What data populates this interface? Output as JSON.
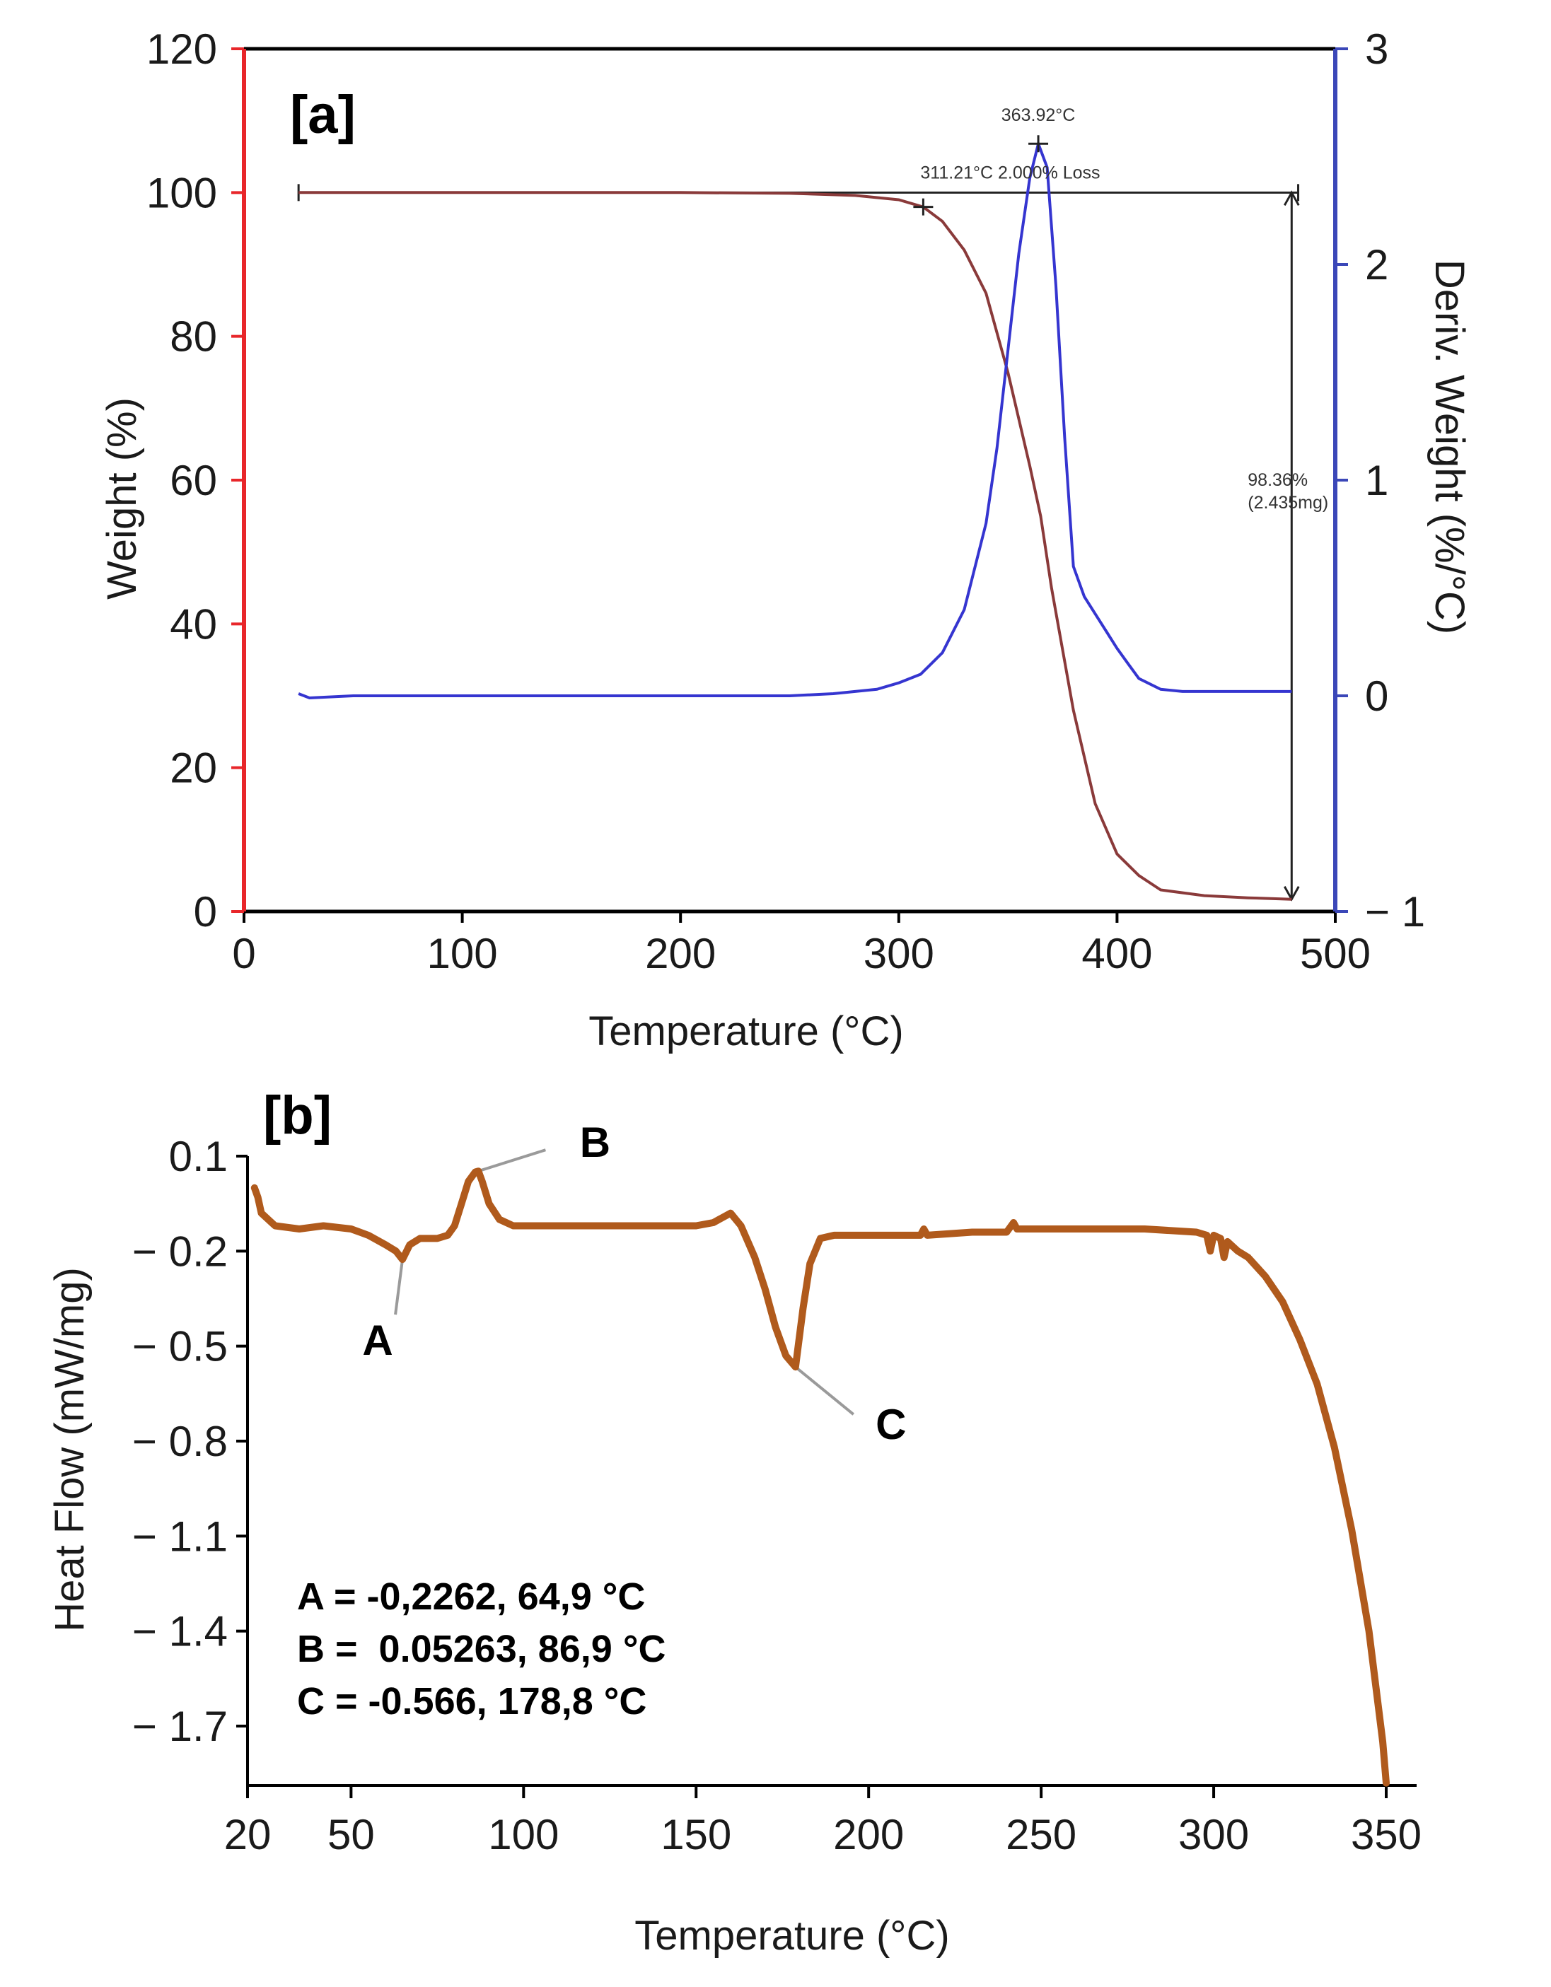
{
  "chart_data": [
    {
      "panel": "[a]",
      "type": "line",
      "xlabel": "Temperature (°C)",
      "ylabel": "Weight (%)",
      "y2label": "Deriv. Weight (%/°C)",
      "xlim": [
        0,
        500
      ],
      "ylim": [
        0,
        120
      ],
      "y2lim": [
        -1,
        3
      ],
      "xticks": [
        "0",
        "100",
        "200",
        "300",
        "400",
        "500"
      ],
      "yticks": [
        "0",
        "20",
        "40",
        "60",
        "80",
        "100",
        "120"
      ],
      "y2ticks": [
        "− 1",
        "0",
        "1",
        "2",
        "3"
      ],
      "colors": {
        "left_axis": "#e8262a",
        "right_axis": "#3b47b8",
        "weight": "#8a3a3a",
        "deriv": "#3535d0",
        "annot": "#222222"
      },
      "series": [
        {
          "name": "Weight",
          "axis": "left",
          "x": [
            25,
            100,
            200,
            250,
            280,
            300,
            311.21,
            320,
            330,
            340,
            350,
            360,
            365,
            370,
            380,
            390,
            400,
            410,
            420,
            440,
            460,
            480
          ],
          "y": [
            100,
            100,
            100,
            99.9,
            99.6,
            99.0,
            98.0,
            96.0,
            92.0,
            86.0,
            75.0,
            62.0,
            55.0,
            45.0,
            28.0,
            15.0,
            8.0,
            5.0,
            3.0,
            2.2,
            1.9,
            1.7
          ]
        },
        {
          "name": "Deriv. Weight",
          "axis": "right",
          "x": [
            25,
            30,
            50,
            100,
            200,
            250,
            270,
            290,
            300,
            310,
            320,
            330,
            340,
            345,
            350,
            355,
            360,
            363.92,
            368,
            372,
            376,
            380,
            385,
            390,
            395,
            400,
            405,
            410,
            420,
            430,
            450,
            480
          ],
          "y": [
            0.01,
            -0.01,
            0.0,
            0.0,
            0.0,
            0.0,
            0.01,
            0.03,
            0.06,
            0.1,
            0.2,
            0.4,
            0.8,
            1.15,
            1.6,
            2.05,
            2.4,
            2.56,
            2.45,
            1.9,
            1.2,
            0.6,
            0.46,
            0.38,
            0.3,
            0.22,
            0.15,
            0.08,
            0.03,
            0.02,
            0.02,
            0.02
          ]
        }
      ],
      "annotations": {
        "peak_label": "363.92°C",
        "peak_x": 363.92,
        "onset_label": "311.21°C 2.000% Loss",
        "onset_x": 311.21,
        "loss_label_1": "98.36%",
        "loss_label_2": "(2.435mg)",
        "hline_y": 100,
        "hline_x": [
          25,
          483
        ],
        "arrow_x": 480,
        "arrow_y": [
          100,
          1.7
        ]
      }
    },
    {
      "panel": "[b]",
      "type": "line",
      "xlabel": "Temperature (°C)",
      "ylabel": "Heat Flow (mW/mg)",
      "xlim": [
        20,
        350
      ],
      "ylim": [
        -1.9,
        0.1
      ],
      "xticks": [
        "20",
        "50",
        "100",
        "150",
        "200",
        "250",
        "300",
        "350"
      ],
      "yticks": [
        "0.1",
        "− 0.2",
        "− 0.5",
        "− 0.8",
        "− 1.1",
        "− 1.4",
        "− 1.7"
      ],
      "colors": {
        "line": "#b05a1c",
        "leader": "#9a9a9a"
      },
      "series": [
        {
          "name": "Heat Flow",
          "x": [
            22,
            23,
            24,
            28,
            35,
            42,
            50,
            55,
            60,
            63,
            64.9,
            67,
            70,
            75,
            78,
            80,
            82,
            84,
            86,
            86.9,
            88,
            90,
            93,
            97,
            100,
            110,
            130,
            150,
            155,
            160,
            163,
            167,
            170,
            173,
            176,
            178.8,
            181,
            183,
            186,
            190,
            200,
            215,
            216,
            217,
            230,
            240,
            242,
            243,
            260,
            280,
            295,
            298,
            299,
            300,
            302,
            303,
            304,
            307,
            310,
            315,
            320,
            325,
            330,
            335,
            340,
            345,
            349,
            350
          ],
          "y": [
            0.0,
            -0.03,
            -0.08,
            -0.12,
            -0.13,
            -0.12,
            -0.13,
            -0.15,
            -0.18,
            -0.2,
            -0.2262,
            -0.18,
            -0.16,
            -0.16,
            -0.15,
            -0.12,
            -0.05,
            0.02,
            0.05,
            0.05263,
            0.02,
            -0.05,
            -0.1,
            -0.12,
            -0.12,
            -0.12,
            -0.12,
            -0.12,
            -0.11,
            -0.08,
            -0.12,
            -0.22,
            -0.32,
            -0.44,
            -0.53,
            -0.566,
            -0.38,
            -0.24,
            -0.16,
            -0.15,
            -0.15,
            -0.15,
            -0.13,
            -0.15,
            -0.14,
            -0.14,
            -0.11,
            -0.13,
            -0.13,
            -0.13,
            -0.14,
            -0.15,
            -0.2,
            -0.15,
            -0.16,
            -0.22,
            -0.17,
            -0.2,
            -0.22,
            -0.28,
            -0.36,
            -0.48,
            -0.62,
            -0.82,
            -1.08,
            -1.4,
            -1.75,
            -1.88
          ]
        }
      ],
      "markers": [
        {
          "label": "A",
          "x": 64.9,
          "y": -0.2262
        },
        {
          "label": "B",
          "x": 86.9,
          "y": 0.05263
        },
        {
          "label": "C",
          "x": 178.8,
          "y": -0.566
        }
      ],
      "summary": [
        "A = -0,2262, 64,9 °C",
        "B =  0.05263, 86,9 °C",
        "C = -0.566, 178,8 °C"
      ]
    }
  ]
}
